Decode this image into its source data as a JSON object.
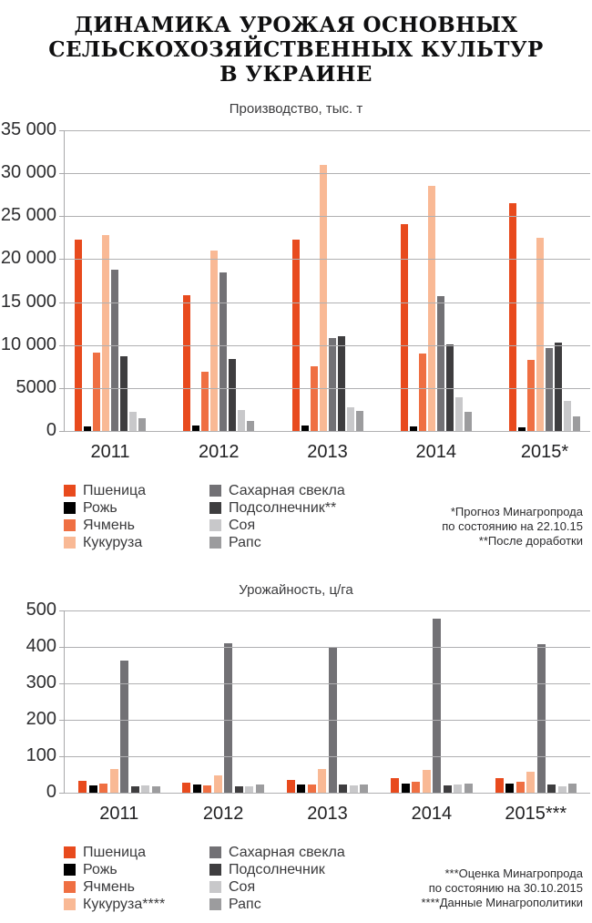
{
  "title_lines": [
    "ДИНАМИКА УРОЖАЯ ОСНОВНЫХ",
    "СЕЛЬСКОХОЗЯЙСТВЕННЫХ КУЛЬТУР",
    "В УКРАИНЕ"
  ],
  "palette": {
    "wheat": "#e84a1d",
    "rye": "#000000",
    "barley": "#ef6f42",
    "corn": "#f9b995",
    "sugar_beet": "#727175",
    "sunflower": "#3e3d3f",
    "soy": "#c8c8ca",
    "rapeseed": "#9c9c9e",
    "grid": "#b0b0b2",
    "axis": "#a9a9ab"
  },
  "chart_data": [
    {
      "type": "bar",
      "title": "Производство, тыс. т",
      "categories": [
        "2011",
        "2012",
        "2013",
        "2014",
        "2015*"
      ],
      "ylim": [
        0,
        35000
      ],
      "grid": true,
      "legend_position": "bottom-left",
      "yticks": [
        {
          "value": 0,
          "label": "0"
        },
        {
          "value": 5000,
          "label": "5000"
        },
        {
          "value": 10000,
          "label": "10 000"
        },
        {
          "value": 15000,
          "label": "15 000"
        },
        {
          "value": 20000,
          "label": "20 000"
        },
        {
          "value": 25000,
          "label": "25 000"
        },
        {
          "value": 30000,
          "label": "30 000"
        },
        {
          "value": 35000,
          "label": "35 000"
        }
      ],
      "series": [
        {
          "key": "wheat",
          "name": "Пшеница",
          "legend": "Пшеница",
          "color": "#e84a1d",
          "values": [
            22320,
            15760,
            22280,
            24110,
            26500
          ]
        },
        {
          "key": "rye",
          "name": "Рожь",
          "legend": "Рожь",
          "color": "#000000",
          "values": [
            580,
            680,
            640,
            480,
            390
          ]
        },
        {
          "key": "barley",
          "name": "Ячмень",
          "legend": "Ячмень",
          "color": "#ef6f42",
          "values": [
            9100,
            6940,
            7560,
            9050,
            8300
          ]
        },
        {
          "key": "corn",
          "name": "Кукуруза",
          "legend": "Кукуруза",
          "color": "#f9b995",
          "values": [
            22840,
            20960,
            30950,
            28500,
            22450
          ]
        },
        {
          "key": "sugar-beet",
          "name": "Сахарная свекла",
          "legend": "Сахарная свекла",
          "color": "#727175",
          "values": [
            18740,
            18440,
            10790,
            15730,
            9700
          ]
        },
        {
          "key": "sunflower",
          "name": "Подсолнечник",
          "legend": "Подсолнечник**",
          "color": "#3e3d3f",
          "values": [
            8670,
            8390,
            11050,
            10130,
            10250
          ]
        },
        {
          "key": "soy",
          "name": "Соя",
          "legend": "Соя",
          "color": "#c8c8ca",
          "values": [
            2260,
            2410,
            2770,
            3880,
            3500
          ]
        },
        {
          "key": "rapeseed",
          "name": "Рапс",
          "legend": "Рапс",
          "color": "#9c9c9e",
          "values": [
            1440,
            1200,
            2350,
            2200,
            1650
          ]
        }
      ],
      "footnote_lines": [
        "*Прогноз Минагропрода",
        "по состоянию на 22.10.15",
        "**После доработки"
      ]
    },
    {
      "type": "bar",
      "title": "Урожайность, ц/га",
      "categories": [
        "2011",
        "2012",
        "2013",
        "2014",
        "2015***"
      ],
      "ylim": [
        0,
        500
      ],
      "grid": true,
      "legend_position": "bottom-left",
      "yticks": [
        {
          "value": 0,
          "label": "0"
        },
        {
          "value": 100,
          "label": "100"
        },
        {
          "value": 200,
          "label": "200"
        },
        {
          "value": 300,
          "label": "300"
        },
        {
          "value": 400,
          "label": "400"
        },
        {
          "value": 500,
          "label": "500"
        }
      ],
      "series": [
        {
          "key": "wheat",
          "name": "Пшеница",
          "legend": "Пшеница",
          "color": "#e84a1d",
          "values": [
            33.5,
            28.0,
            33.9,
            40.1,
            38.8
          ]
        },
        {
          "key": "rye",
          "name": "Рожь",
          "legend": "Рожь",
          "color": "#000000",
          "values": [
            20.7,
            22.7,
            22.9,
            25.8,
            25.9
          ]
        },
        {
          "key": "barley",
          "name": "Ячмень",
          "legend": "Ячмень",
          "color": "#ef6f42",
          "values": [
            24.7,
            21.1,
            23.4,
            30.1,
            29.5
          ]
        },
        {
          "key": "corn",
          "name": "Кукуруза",
          "legend": "Кукуруза****",
          "color": "#f9b995",
          "values": [
            64.4,
            47.9,
            64.1,
            61.6,
            57.0
          ]
        },
        {
          "key": "sugar-beet",
          "name": "Сахарная свекла",
          "legend": "Сахарная свекла",
          "color": "#727175",
          "values": [
            363,
            411,
            399,
            477,
            408
          ]
        },
        {
          "key": "sunflower",
          "name": "Подсолнечник",
          "legend": "Подсолнечник",
          "color": "#3e3d3f",
          "values": [
            18.4,
            16.5,
            21.7,
            19.4,
            21.6
          ]
        },
        {
          "key": "soy",
          "name": "Соя",
          "legend": "Соя",
          "color": "#c8c8ca",
          "values": [
            20.4,
            17.1,
            20.5,
            21.6,
            18.4
          ]
        },
        {
          "key": "rapeseed",
          "name": "Рапс",
          "legend": "Рапс",
          "color": "#9c9c9e",
          "values": [
            17.3,
            22.0,
            23.6,
            25.5,
            25.9
          ]
        }
      ],
      "footnote_lines": [
        "***Оценка Минагропрода",
        "по состоянию на 30.10.2015",
        "****Данные Минагрополитики"
      ]
    }
  ]
}
